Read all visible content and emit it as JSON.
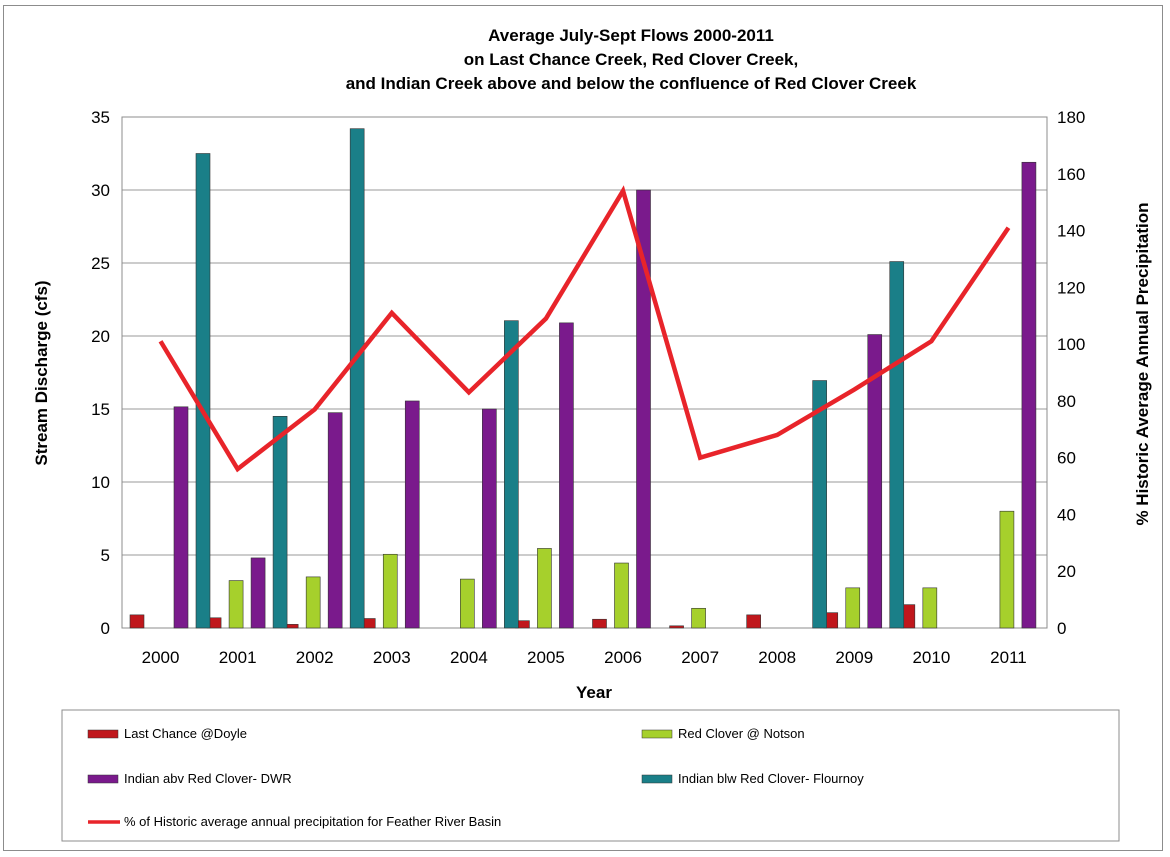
{
  "chart_data": {
    "type": "bar",
    "title_lines": [
      "Average July-Sept Flows 2000-2011",
      "on Last Chance Creek, Red Clover Creek,",
      "and Indian Creek above and below the confluence of Red Clover Creek"
    ],
    "xlabel": "Year",
    "ylabel": "Stream Discharge (cfs)",
    "y2label": "% Historic Average Annual Precipitation",
    "categories": [
      "2000",
      "2001",
      "2002",
      "2003",
      "2004",
      "2005",
      "2006",
      "2007",
      "2008",
      "2009",
      "2010",
      "2011"
    ],
    "ylim": [
      0,
      35
    ],
    "yticks": [
      "0",
      "5",
      "10",
      "15",
      "20",
      "25",
      "30",
      "35"
    ],
    "y2lim": [
      0,
      180
    ],
    "y2ticks": [
      "0",
      "20",
      "40",
      "60",
      "80",
      "100",
      "120",
      "140",
      "160",
      "180"
    ],
    "grid": true,
    "legend_position": "bottom",
    "series": [
      {
        "name": "Last Chance @Doyle",
        "kind": "bar",
        "color": "#c0171c",
        "values": [
          0.9,
          0.7,
          0.25,
          0.65,
          null,
          0.5,
          0.6,
          0.15,
          0.9,
          1.05,
          1.6,
          null
        ]
      },
      {
        "name": "Red Clover @ Notson",
        "kind": "bar",
        "color": "#a6d02c",
        "values": [
          null,
          3.25,
          3.5,
          5.05,
          3.35,
          5.45,
          4.45,
          1.35,
          null,
          2.75,
          2.75,
          8.0
        ]
      },
      {
        "name": "Indian abv Red Clover- DWR",
        "kind": "bar",
        "color": "#7a1a8c",
        "values": [
          15.15,
          4.8,
          14.75,
          15.55,
          15.0,
          20.9,
          30.0,
          null,
          null,
          20.1,
          null,
          31.9
        ]
      },
      {
        "name": "Indian blw Red Clover- Flournoy",
        "kind": "bar",
        "color": "#1a7f88",
        "values": [
          32.5,
          14.5,
          34.2,
          null,
          21.05,
          null,
          null,
          null,
          16.95,
          25.1,
          null,
          null
        ]
      },
      {
        "name": "% of Historic average annual precipitation for Feather River Basin",
        "kind": "line",
        "axis": "y2",
        "color": "#e8242a",
        "values": [
          101,
          56,
          77,
          111,
          83,
          109,
          154,
          60,
          68,
          84,
          101,
          141
        ]
      }
    ]
  }
}
